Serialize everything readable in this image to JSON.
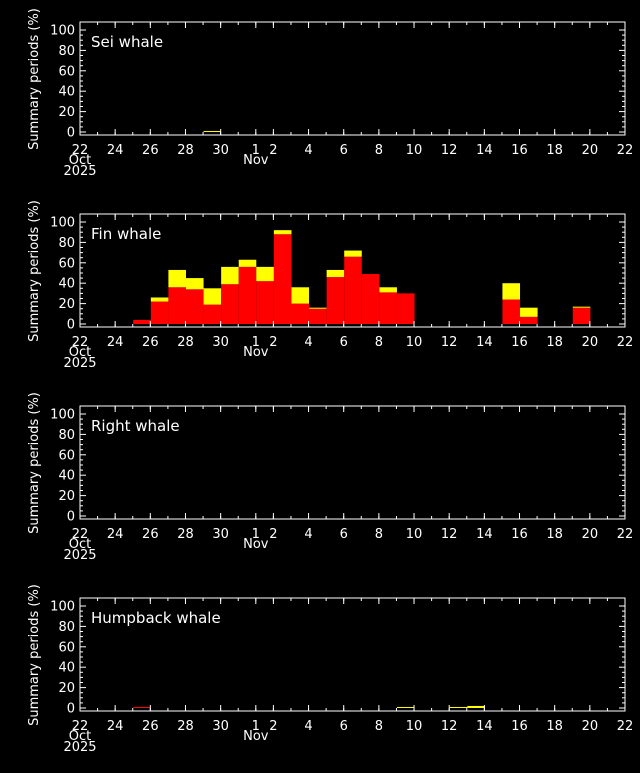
{
  "x_axis": {
    "tick_labels": [
      "22",
      "24",
      "26",
      "28",
      "30",
      "1",
      "2",
      "4",
      "6",
      "8",
      "10",
      "12",
      "14",
      "16",
      "18",
      "20",
      "22"
    ],
    "tick_days": [
      0,
      2,
      4,
      6,
      8,
      10,
      11,
      13,
      15,
      17,
      19,
      21,
      23,
      25,
      27,
      29,
      31
    ],
    "month_labels": [
      {
        "text": "Oct",
        "day": 0
      },
      {
        "text": "Nov",
        "day": 10
      }
    ],
    "year_label": "2025",
    "start_date": "2025-10-22",
    "end_date": "2025-11-22"
  },
  "chart_data": [
    {
      "type": "bar",
      "stacked": true,
      "title": "Sei whale",
      "ylabel": "Summary periods (%)",
      "ylim": [
        0,
        100
      ],
      "yticks": [
        0,
        20,
        40,
        60,
        80,
        100
      ],
      "x": [
        "2025-10-29"
      ],
      "series": [
        {
          "color": "#ff0000",
          "values": [
            0
          ]
        },
        {
          "color": "#ffff00",
          "values": [
            1
          ]
        }
      ]
    },
    {
      "type": "bar",
      "stacked": true,
      "title": "Fin whale",
      "ylabel": "Summary periods (%)",
      "ylim": [
        0,
        100
      ],
      "yticks": [
        0,
        20,
        40,
        60,
        80,
        100
      ],
      "x": [
        "2025-10-25",
        "2025-10-26",
        "2025-10-27",
        "2025-10-28",
        "2025-10-29",
        "2025-10-30",
        "2025-10-31",
        "2025-11-01",
        "2025-11-02",
        "2025-11-03",
        "2025-11-04",
        "2025-11-05",
        "2025-11-06",
        "2025-11-07",
        "2025-11-08",
        "2025-11-09",
        "2025-11-15",
        "2025-11-16",
        "2025-11-19"
      ],
      "series": [
        {
          "color": "#ff0000",
          "values": [
            4,
            22,
            36,
            34,
            19,
            39,
            56,
            42,
            88,
            20,
            15,
            46,
            66,
            49,
            31,
            30,
            24,
            7,
            16
          ]
        },
        {
          "color": "#ffff00",
          "values": [
            0,
            4,
            17,
            11,
            16,
            17,
            7,
            14,
            4,
            16,
            1,
            7,
            6,
            0,
            5,
            0,
            16,
            9,
            1
          ]
        }
      ]
    },
    {
      "type": "bar",
      "stacked": true,
      "title": "Right whale",
      "ylabel": "Summary periods (%)",
      "ylim": [
        0,
        100
      ],
      "yticks": [
        0,
        20,
        40,
        60,
        80,
        100
      ],
      "x": [],
      "series": [
        {
          "color": "#ff0000",
          "values": []
        },
        {
          "color": "#ffff00",
          "values": []
        }
      ]
    },
    {
      "type": "bar",
      "stacked": true,
      "title": "Humpback whale",
      "ylabel": "Summary periods (%)",
      "ylim": [
        0,
        100
      ],
      "yticks": [
        0,
        20,
        40,
        60,
        80,
        100
      ],
      "x": [
        "2025-10-25",
        "2025-11-09",
        "2025-11-12",
        "2025-11-13"
      ],
      "series": [
        {
          "color": "#ff0000",
          "values": [
            1,
            0,
            0,
            0
          ]
        },
        {
          "color": "#ffff00",
          "values": [
            0,
            1,
            1,
            2
          ]
        }
      ]
    }
  ]
}
